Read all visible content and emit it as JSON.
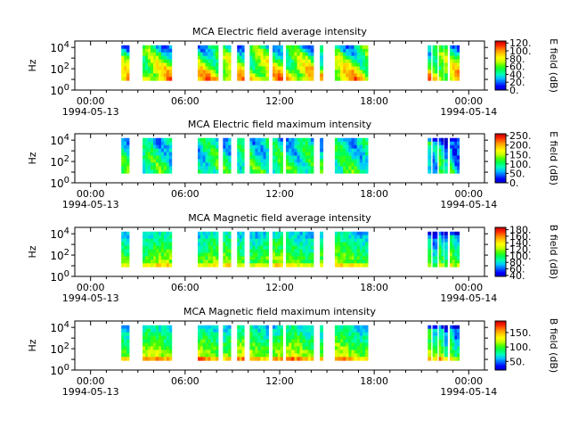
{
  "chart_data": [
    {
      "type": "heatmap",
      "title": "MCA  Electric field average intensity",
      "ylabel": "Hz",
      "y_scale": "log",
      "y_ticks": [
        {
          "base": "10",
          "exp": "0"
        },
        {
          "base": "10",
          "exp": "2"
        },
        {
          "base": "10",
          "exp": "4"
        }
      ],
      "x_ticks": [
        {
          "time": "00:00",
          "date": "1994-05-13"
        },
        {
          "time": "06:00",
          "date": ""
        },
        {
          "time": "12:00",
          "date": ""
        },
        {
          "time": "18:00",
          "date": ""
        },
        {
          "time": "00:00",
          "date": "1994-05-14"
        }
      ],
      "colorbar": {
        "label": "E field (dB)",
        "ticks": [
          "0.",
          "20.",
          "40.",
          "60.",
          "80.",
          "100.",
          "120."
        ],
        "range": [
          0,
          125
        ]
      }
    },
    {
      "type": "heatmap",
      "title": "MCA  Electric field maximum intensity",
      "ylabel": "Hz",
      "y_scale": "log",
      "y_ticks": [
        {
          "base": "10",
          "exp": "0"
        },
        {
          "base": "10",
          "exp": "2"
        },
        {
          "base": "10",
          "exp": "4"
        }
      ],
      "x_ticks": [
        {
          "time": "00:00",
          "date": "1994-05-13"
        },
        {
          "time": "06:00",
          "date": ""
        },
        {
          "time": "12:00",
          "date": ""
        },
        {
          "time": "18:00",
          "date": ""
        },
        {
          "time": "00:00",
          "date": "1994-05-14"
        }
      ],
      "colorbar": {
        "label": "E field (dB)",
        "ticks": [
          "0.",
          "50.",
          "100.",
          "150.",
          "200.",
          "250."
        ],
        "range": [
          0,
          260
        ]
      }
    },
    {
      "type": "heatmap",
      "title": "MCA  Magnetic field average intensity",
      "ylabel": "Hz",
      "y_scale": "log",
      "y_ticks": [
        {
          "base": "10",
          "exp": "0"
        },
        {
          "base": "10",
          "exp": "2"
        },
        {
          "base": "10",
          "exp": "4"
        }
      ],
      "x_ticks": [
        {
          "time": "00:00",
          "date": "1994-05-13"
        },
        {
          "time": "06:00",
          "date": ""
        },
        {
          "time": "12:00",
          "date": ""
        },
        {
          "time": "18:00",
          "date": ""
        },
        {
          "time": "00:00",
          "date": "1994-05-14"
        }
      ],
      "colorbar": {
        "label": "B field (dB)",
        "ticks": [
          "40.",
          "60.",
          "80.",
          "100.",
          "120.",
          "140.",
          "160.",
          "180."
        ],
        "range": [
          37,
          187
        ]
      }
    },
    {
      "type": "heatmap",
      "title": "MCA  Magnetic field maximum intensity",
      "ylabel": "Hz",
      "y_scale": "log",
      "y_ticks": [
        {
          "base": "10",
          "exp": "0"
        },
        {
          "base": "10",
          "exp": "2"
        },
        {
          "base": "10",
          "exp": "4"
        }
      ],
      "x_ticks": [
        {
          "time": "00:00",
          "date": "1994-05-13"
        },
        {
          "time": "06:00",
          "date": ""
        },
        {
          "time": "12:00",
          "date": ""
        },
        {
          "time": "18:00",
          "date": ""
        },
        {
          "time": "00:00",
          "date": "1994-05-14"
        }
      ],
      "colorbar": {
        "label": "B field (dB)",
        "ticks": [
          "50.",
          "100.",
          "150."
        ],
        "range": [
          20,
          190
        ]
      }
    }
  ],
  "time_range_hours": [
    -1,
    25
  ],
  "data_intervals_hours": [
    [
      1.95,
      2.45
    ],
    [
      3.3,
      5.15
    ],
    [
      6.8,
      8.1
    ],
    [
      8.4,
      8.9
    ],
    [
      9.3,
      9.75
    ],
    [
      10.1,
      11.3
    ],
    [
      11.55,
      12.2
    ],
    [
      12.4,
      14.15
    ],
    [
      14.55,
      14.75
    ],
    [
      15.5,
      17.6
    ],
    [
      21.4,
      21.6
    ],
    [
      21.7,
      22.0
    ],
    [
      22.1,
      22.4
    ],
    [
      22.45,
      22.65
    ],
    [
      22.8,
      23.4
    ]
  ],
  "colormap": [
    "#0000c8",
    "#0000ff",
    "#0064ff",
    "#00c8ff",
    "#00ffb4",
    "#00ff50",
    "#46ff00",
    "#c8ff00",
    "#ffff00",
    "#ffc800",
    "#ff8200",
    "#ff2800",
    "#c80000"
  ]
}
